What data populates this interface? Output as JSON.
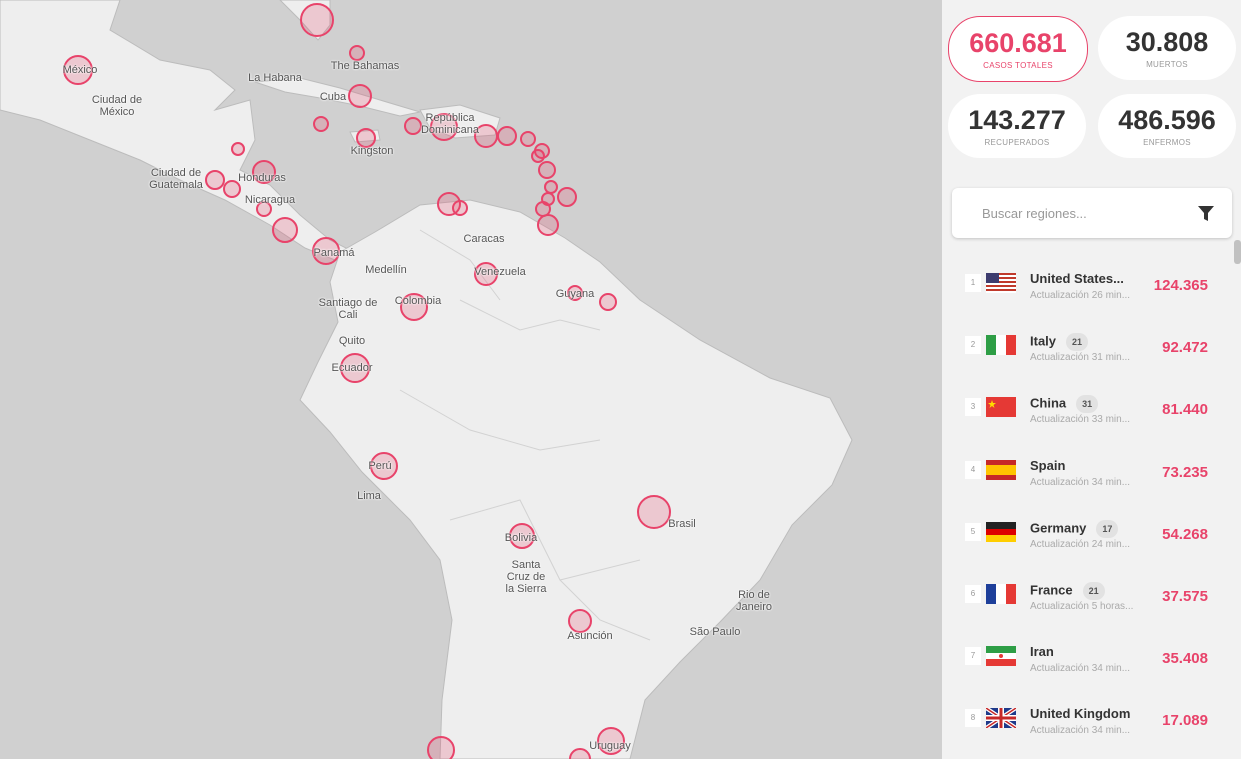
{
  "map": {
    "labels": [
      "México",
      "Ciudad de México",
      "La Habana",
      "The Bahamas",
      "Cuba",
      "República Dominicana",
      "Kingston",
      "Ciudad de Guatemala",
      "Honduras",
      "Nicaragua",
      "Panamá",
      "Caracas",
      "Medellín",
      "Venezuela",
      "Guyana",
      "Santiago de Cali",
      "Colombia",
      "Quito",
      "Ecuador",
      "Perú",
      "Lima",
      "Bolivia",
      "Santa Cruz de la Sierra",
      "Brasil",
      "Asunción",
      "Rio de Janeiro",
      "São Paulo",
      "Uruguay"
    ]
  },
  "stats": [
    {
      "value": "660.681",
      "label": "CASOS TOTALES"
    },
    {
      "value": "30.808",
      "label": "MUERTOS"
    },
    {
      "value": "143.277",
      "label": "RECUPERADOS"
    },
    {
      "value": "486.596",
      "label": "ENFERMOS"
    }
  ],
  "search": {
    "placeholder": "Buscar regiones..."
  },
  "regions": [
    {
      "rank": "1",
      "name": "United States...",
      "updated": "Actualización 26 min...",
      "cases": "124.365"
    },
    {
      "rank": "2",
      "name": "Italy",
      "badge": "21",
      "updated": "Actualización 31 min...",
      "cases": "92.472"
    },
    {
      "rank": "3",
      "name": "China",
      "badge": "31",
      "updated": "Actualización 33 min...",
      "cases": "81.440"
    },
    {
      "rank": "4",
      "name": "Spain",
      "updated": "Actualización 34 min...",
      "cases": "73.235"
    },
    {
      "rank": "5",
      "name": "Germany",
      "badge": "17",
      "updated": "Actualización 24 min...",
      "cases": "54.268"
    },
    {
      "rank": "6",
      "name": "France",
      "badge": "21",
      "updated": "Actualización 5 horas...",
      "cases": "37.575"
    },
    {
      "rank": "7",
      "name": "Iran",
      "updated": "Actualización 34 min...",
      "cases": "35.408"
    },
    {
      "rank": "8",
      "name": "United Kingdom",
      "updated": "Actualización 34 min...",
      "cases": "17.089"
    }
  ]
}
